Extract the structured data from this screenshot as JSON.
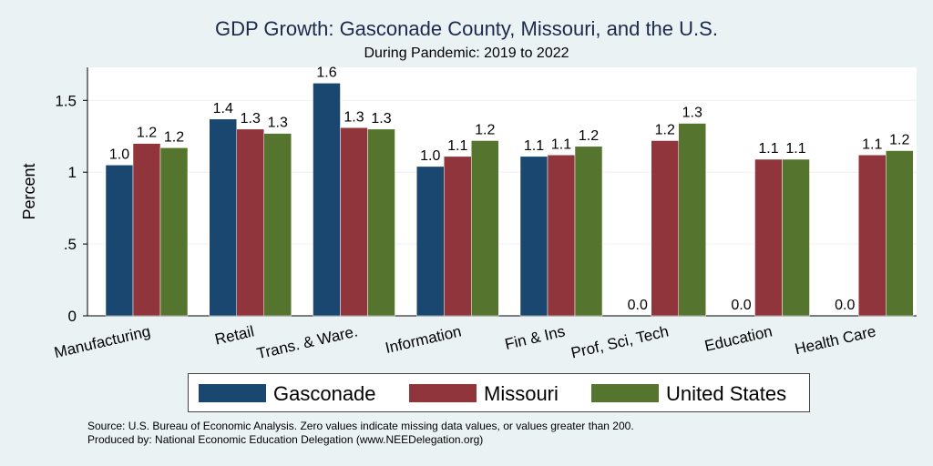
{
  "chart_data": {
    "type": "bar",
    "title": "GDP Growth: Gasconade County, Missouri, and the U.S.",
    "subtitle": "During Pandemic: 2019 to 2022",
    "xlabel": "",
    "ylabel": "Percent",
    "ylim": [
      0,
      1.73
    ],
    "yticks": [
      0,
      0.5,
      1,
      1.5
    ],
    "ytick_labels": [
      "0",
      ".5",
      "1",
      "1.5"
    ],
    "grid": true,
    "legend_position": "bottom",
    "categories": [
      "Manufacturing",
      "Retail",
      "Trans. & Ware.",
      "Information",
      "Fin & Ins",
      "Prof, Sci, Tech",
      "Education",
      "Health Care"
    ],
    "series": [
      {
        "name": "Gasconade",
        "color": "#1a476f",
        "values": [
          1.05,
          1.37,
          1.62,
          1.04,
          1.11,
          0.0,
          0.0,
          0.0
        ],
        "labels": [
          "1.0",
          "1.4",
          "1.6",
          "1.0",
          "1.1",
          "0.0",
          "0.0",
          "0.0"
        ]
      },
      {
        "name": "Missouri",
        "color": "#90353b",
        "values": [
          1.2,
          1.3,
          1.31,
          1.11,
          1.12,
          1.22,
          1.09,
          1.12
        ],
        "labels": [
          "1.2",
          "1.3",
          "1.3",
          "1.1",
          "1.1",
          "1.2",
          "1.1",
          "1.1"
        ]
      },
      {
        "name": "United States",
        "color": "#55752f",
        "values": [
          1.17,
          1.27,
          1.3,
          1.22,
          1.18,
          1.34,
          1.09,
          1.15
        ],
        "labels": [
          "1.2",
          "1.3",
          "1.3",
          "1.2",
          "1.2",
          "1.3",
          "1.1",
          "1.2"
        ]
      }
    ]
  },
  "footer": {
    "source": "Source: U.S. Bureau of Economic Analysis. Zero values indicate missing data values, or values greater than 200.",
    "produced_by": "Produced by: National Economic Education Delegation (www.NEEDelegation.org)"
  }
}
